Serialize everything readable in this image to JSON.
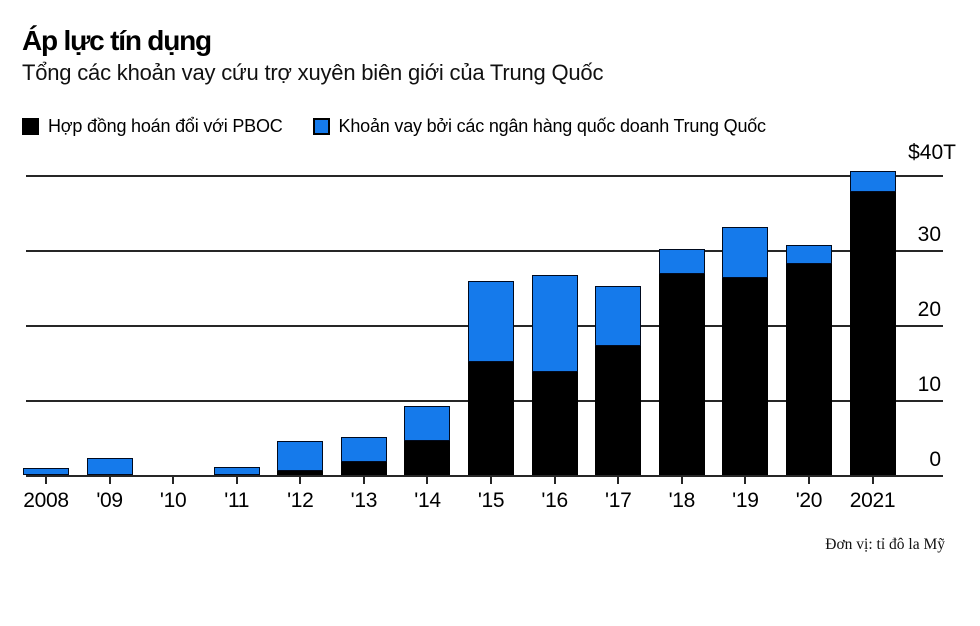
{
  "header": {
    "title": "Áp lực tín dụng",
    "subtitle": "Tổng các khoản vay cứu trợ xuyên biên giới của Trung Quốc"
  },
  "legend": {
    "items": [
      {
        "label": "Hợp đồng hoán đổi với PBOC",
        "color": "#000000"
      },
      {
        "label": "Khoản vay bởi các ngân hàng quốc doanh Trung Quốc",
        "color": "#157AEB"
      }
    ]
  },
  "footer": {
    "note": "Đơn vị: tỉ đô la Mỹ"
  },
  "chart_data": {
    "type": "bar",
    "stacked": true,
    "title": "Áp lực tín dụng",
    "subtitle": "Tổng các khoản vay cứu trợ xuyên biên giới của Trung Quốc",
    "unit_note": "Đơn vị: tỉ đô la Mỹ",
    "categories": [
      "2008",
      "'09",
      "'10",
      "'11",
      "'12",
      "'13",
      "'14",
      "'15",
      "'16",
      "'17",
      "'18",
      "'19",
      "'20",
      "2021"
    ],
    "series": [
      {
        "name": "Hợp đồng hoán đổi với PBOC",
        "color": "#000000",
        "values": [
          0,
          0,
          0,
          0,
          0.6,
          1.8,
          4.6,
          15.2,
          13.8,
          17.3,
          26.9,
          26.4,
          28.3,
          37.9
        ]
      },
      {
        "name": "Khoản vay bởi các ngân hàng quốc doanh Trung Quốc",
        "color": "#157AEB",
        "values": [
          1.0,
          2.3,
          0,
          1.1,
          4.0,
          3.4,
          4.7,
          10.8,
          13.0,
          8.0,
          3.4,
          6.8,
          2.5,
          2.8
        ]
      }
    ],
    "totals": [
      1.0,
      2.3,
      0,
      1.1,
      4.6,
      5.2,
      9.3,
      26.0,
      26.8,
      25.3,
      30.3,
      33.2,
      30.8,
      40.7
    ],
    "ylabel_top": "$40T",
    "yticks": [
      0,
      10,
      20,
      30
    ],
    "ymax_gridline": 40,
    "ylim": [
      0,
      42
    ],
    "grid": "horizontal",
    "legend_position": "top",
    "tick_label_side": "right"
  }
}
